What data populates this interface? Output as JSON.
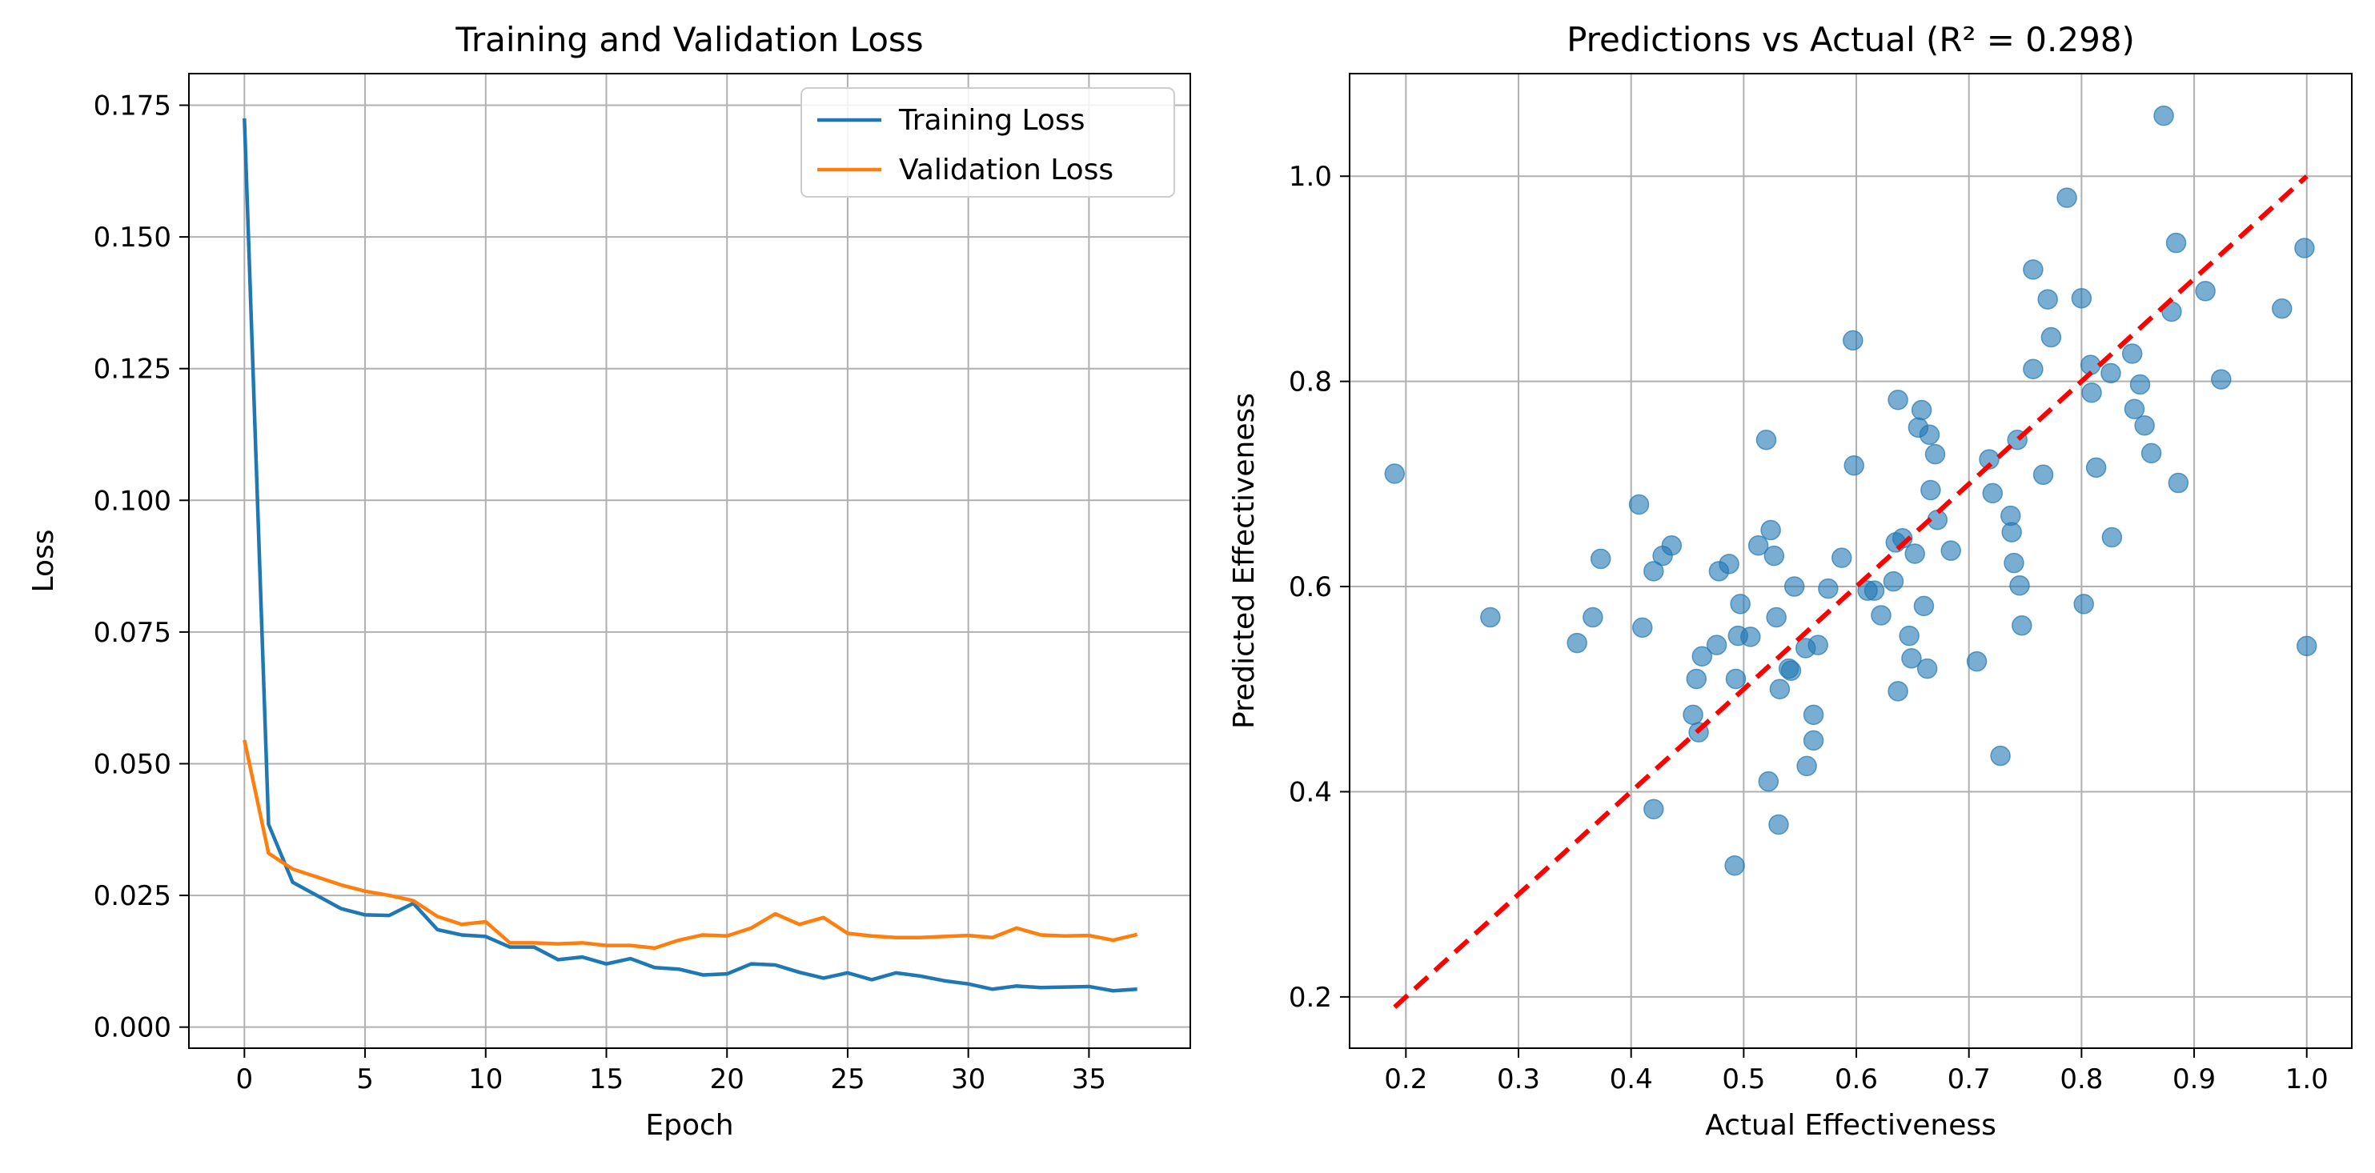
{
  "chart_data": [
    {
      "type": "line",
      "title": "Training and Validation Loss",
      "xlabel": "Epoch",
      "ylabel": "Loss",
      "xlim": [
        -2.3,
        39.2
      ],
      "ylim": [
        -0.004,
        0.181
      ],
      "xticks": [
        0,
        5,
        10,
        15,
        20,
        25,
        30,
        35
      ],
      "yticks": [
        0.0,
        0.025,
        0.05,
        0.075,
        0.1,
        0.125,
        0.15,
        0.175
      ],
      "ytick_labels": [
        "0.000",
        "0.025",
        "0.050",
        "0.075",
        "0.100",
        "0.125",
        "0.150",
        "0.175"
      ],
      "grid": true,
      "legend": "upper-right",
      "x": [
        0,
        1,
        2,
        3,
        4,
        5,
        6,
        7,
        8,
        9,
        10,
        11,
        12,
        13,
        14,
        15,
        16,
        17,
        18,
        19,
        20,
        21,
        22,
        23,
        24,
        25,
        26,
        27,
        28,
        29,
        30,
        31,
        32,
        33,
        34,
        35,
        36,
        37
      ],
      "series": [
        {
          "name": "Training Loss",
          "color": "#1f77b4",
          "values": [
            0.1725,
            0.0385,
            0.0275,
            0.025,
            0.0225,
            0.0213,
            0.0212,
            0.0235,
            0.0185,
            0.0175,
            0.0172,
            0.0152,
            0.0152,
            0.0128,
            0.0133,
            0.012,
            0.013,
            0.0113,
            0.011,
            0.0099,
            0.0101,
            0.012,
            0.0118,
            0.0104,
            0.0093,
            0.0103,
            0.009,
            0.0103,
            0.0097,
            0.0088,
            0.0082,
            0.0072,
            0.0078,
            0.0075,
            0.0076,
            0.0077,
            0.0069,
            0.0072
          ]
        },
        {
          "name": "Validation Loss",
          "color": "#ff7f0e",
          "values": [
            0.0545,
            0.033,
            0.03,
            0.0285,
            0.027,
            0.0258,
            0.025,
            0.024,
            0.021,
            0.0195,
            0.02,
            0.016,
            0.016,
            0.0158,
            0.016,
            0.0155,
            0.0155,
            0.015,
            0.0165,
            0.0175,
            0.0173,
            0.0188,
            0.0215,
            0.0195,
            0.0208,
            0.0178,
            0.0173,
            0.017,
            0.017,
            0.0172,
            0.0174,
            0.017,
            0.0188,
            0.0175,
            0.0173,
            0.0174,
            0.0165,
            0.0176
          ]
        }
      ]
    },
    {
      "type": "scatter",
      "title": "Predictions vs Actual (R² = 0.298)",
      "xlabel": "Actual Effectiveness",
      "ylabel": "Predicted Effectiveness",
      "xlim": [
        0.15,
        1.04
      ],
      "ylim": [
        0.15,
        1.1
      ],
      "xticks": [
        0.2,
        0.3,
        0.4,
        0.5,
        0.6,
        0.7,
        0.8,
        0.9,
        1.0
      ],
      "xtick_labels": [
        "0.2",
        "0.3",
        "0.4",
        "0.5",
        "0.6",
        "0.7",
        "0.8",
        "0.9",
        "1.0"
      ],
      "yticks": [
        0.2,
        0.4,
        0.6,
        0.8,
        1.0
      ],
      "ytick_labels": [
        "0.2",
        "0.4",
        "0.6",
        "0.8",
        "1.0"
      ],
      "grid": true,
      "point_color": "#1f77b4",
      "reference_line": {
        "x": [
          0.19,
          1.0
        ],
        "y": [
          0.19,
          1.0
        ],
        "color": "#ff0000",
        "style": "dashed"
      },
      "points": [
        [
          0.19,
          0.71
        ],
        [
          0.275,
          0.57
        ],
        [
          0.352,
          0.545
        ],
        [
          0.366,
          0.57
        ],
        [
          0.373,
          0.627
        ],
        [
          0.407,
          0.68
        ],
        [
          0.41,
          0.56
        ],
        [
          0.42,
          0.615
        ],
        [
          0.428,
          0.63
        ],
        [
          0.436,
          0.64
        ],
        [
          0.42,
          0.383
        ],
        [
          0.455,
          0.475
        ],
        [
          0.458,
          0.51
        ],
        [
          0.46,
          0.458
        ],
        [
          0.463,
          0.532
        ],
        [
          0.476,
          0.543
        ],
        [
          0.478,
          0.615
        ],
        [
          0.487,
          0.622
        ],
        [
          0.492,
          0.328
        ],
        [
          0.493,
          0.51
        ],
        [
          0.495,
          0.552
        ],
        [
          0.497,
          0.583
        ],
        [
          0.506,
          0.551
        ],
        [
          0.513,
          0.64
        ],
        [
          0.52,
          0.743
        ],
        [
          0.522,
          0.41
        ],
        [
          0.524,
          0.655
        ],
        [
          0.527,
          0.63
        ],
        [
          0.529,
          0.57
        ],
        [
          0.531,
          0.368
        ],
        [
          0.532,
          0.5
        ],
        [
          0.54,
          0.52
        ],
        [
          0.542,
          0.518
        ],
        [
          0.545,
          0.6
        ],
        [
          0.555,
          0.54
        ],
        [
          0.556,
          0.425
        ],
        [
          0.562,
          0.475
        ],
        [
          0.562,
          0.45
        ],
        [
          0.566,
          0.543
        ],
        [
          0.575,
          0.598
        ],
        [
          0.587,
          0.628
        ],
        [
          0.597,
          0.84
        ],
        [
          0.598,
          0.718
        ],
        [
          0.61,
          0.596
        ],
        [
          0.616,
          0.596
        ],
        [
          0.622,
          0.572
        ],
        [
          0.633,
          0.605
        ],
        [
          0.635,
          0.643
        ],
        [
          0.637,
          0.782
        ],
        [
          0.637,
          0.498
        ],
        [
          0.641,
          0.647
        ],
        [
          0.647,
          0.552
        ],
        [
          0.649,
          0.53
        ],
        [
          0.652,
          0.632
        ],
        [
          0.655,
          0.755
        ],
        [
          0.658,
          0.772
        ],
        [
          0.66,
          0.581
        ],
        [
          0.663,
          0.52
        ],
        [
          0.665,
          0.748
        ],
        [
          0.666,
          0.694
        ],
        [
          0.67,
          0.729
        ],
        [
          0.672,
          0.665
        ],
        [
          0.684,
          0.635
        ],
        [
          0.707,
          0.527
        ],
        [
          0.718,
          0.724
        ],
        [
          0.721,
          0.691
        ],
        [
          0.728,
          0.435
        ],
        [
          0.737,
          0.669
        ],
        [
          0.738,
          0.653
        ],
        [
          0.74,
          0.623
        ],
        [
          0.743,
          0.743
        ],
        [
          0.745,
          0.601
        ],
        [
          0.747,
          0.562
        ],
        [
          0.757,
          0.909
        ],
        [
          0.757,
          0.812
        ],
        [
          0.766,
          0.709
        ],
        [
          0.77,
          0.88
        ],
        [
          0.773,
          0.843
        ],
        [
          0.787,
          0.979
        ],
        [
          0.8,
          0.881
        ],
        [
          0.802,
          0.583
        ],
        [
          0.808,
          0.816
        ],
        [
          0.809,
          0.789
        ],
        [
          0.813,
          0.716
        ],
        [
          0.826,
          0.808
        ],
        [
          0.827,
          0.648
        ],
        [
          0.845,
          0.827
        ],
        [
          0.847,
          0.773
        ],
        [
          0.852,
          0.797
        ],
        [
          0.856,
          0.757
        ],
        [
          0.862,
          0.73
        ],
        [
          0.873,
          1.059
        ],
        [
          0.88,
          0.868
        ],
        [
          0.884,
          0.935
        ],
        [
          0.886,
          0.701
        ],
        [
          0.91,
          0.888
        ],
        [
          0.924,
          0.802
        ],
        [
          0.978,
          0.871
        ],
        [
          0.998,
          0.93
        ],
        [
          1.0,
          0.542
        ]
      ]
    }
  ]
}
